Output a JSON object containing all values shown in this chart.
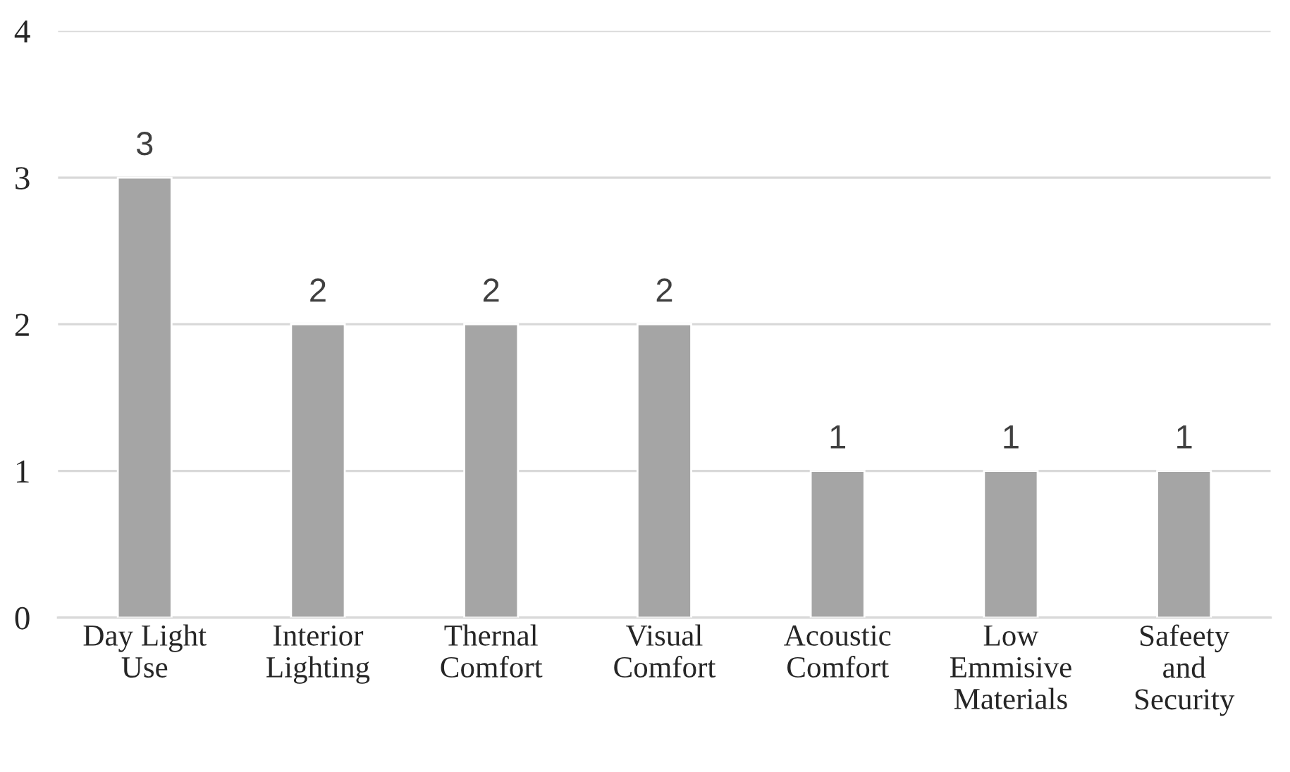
{
  "chart_data": {
    "type": "bar",
    "categories": [
      "Day Light Use",
      "Interior Lighting",
      "Thernal Comfort",
      "Visual Comfort",
      "Acoustic Comfort",
      "Low Emmisive Materials",
      "Safeety and Security"
    ],
    "values": [
      3,
      2,
      2,
      2,
      1,
      1,
      1
    ],
    "color": "#a5a5a5",
    "ylim": [
      0,
      4
    ],
    "yticks": [
      0,
      1,
      2,
      3,
      4
    ],
    "grid": "y",
    "data_labels": true
  }
}
